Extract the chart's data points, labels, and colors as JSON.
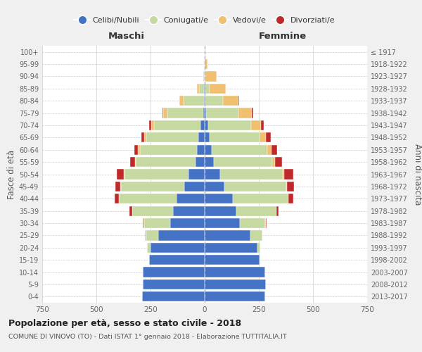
{
  "age_groups": [
    "0-4",
    "5-9",
    "10-14",
    "15-19",
    "20-24",
    "25-29",
    "30-34",
    "35-39",
    "40-44",
    "45-49",
    "50-54",
    "55-59",
    "60-64",
    "65-69",
    "70-74",
    "75-79",
    "80-84",
    "85-89",
    "90-94",
    "95-99",
    "100+"
  ],
  "birth_years": [
    "2013-2017",
    "2008-2012",
    "2003-2007",
    "1998-2002",
    "1993-1997",
    "1988-1992",
    "1983-1987",
    "1978-1982",
    "1973-1977",
    "1968-1972",
    "1963-1967",
    "1958-1962",
    "1953-1957",
    "1948-1952",
    "1943-1947",
    "1938-1942",
    "1933-1937",
    "1928-1932",
    "1923-1927",
    "1918-1922",
    "≤ 1917"
  ],
  "male": {
    "celibi": [
      290,
      285,
      285,
      255,
      250,
      215,
      160,
      145,
      130,
      95,
      75,
      42,
      35,
      28,
      20,
      8,
      3,
      2,
      0,
      0,
      0
    ],
    "coniugati": [
      0,
      0,
      0,
      3,
      15,
      55,
      120,
      190,
      265,
      290,
      295,
      275,
      265,
      240,
      215,
      165,
      95,
      25,
      4,
      1,
      0
    ],
    "vedovi": [
      0,
      0,
      0,
      0,
      0,
      0,
      1,
      1,
      2,
      3,
      4,
      5,
      8,
      10,
      12,
      18,
      18,
      8,
      2,
      0,
      0
    ],
    "divorziati": [
      0,
      0,
      0,
      0,
      1,
      2,
      5,
      12,
      20,
      25,
      32,
      22,
      18,
      14,
      8,
      4,
      1,
      1,
      0,
      0,
      0
    ]
  },
  "female": {
    "nubili": [
      280,
      282,
      280,
      252,
      242,
      210,
      162,
      145,
      130,
      90,
      72,
      42,
      32,
      22,
      15,
      8,
      3,
      2,
      1,
      0,
      0
    ],
    "coniugate": [
      0,
      0,
      0,
      3,
      15,
      55,
      118,
      185,
      255,
      285,
      288,
      270,
      258,
      232,
      200,
      148,
      82,
      20,
      3,
      1,
      0
    ],
    "vedove": [
      0,
      0,
      0,
      0,
      0,
      0,
      1,
      1,
      2,
      4,
      8,
      12,
      18,
      28,
      45,
      62,
      72,
      75,
      52,
      12,
      2
    ],
    "divorziate": [
      0,
      0,
      0,
      0,
      1,
      2,
      5,
      10,
      22,
      32,
      42,
      32,
      26,
      22,
      12,
      6,
      2,
      1,
      0,
      0,
      0
    ]
  },
  "colors": {
    "celibi_nubili": "#4472C4",
    "coniugati": "#c5d9a0",
    "vedovi": "#f0c070",
    "divorziati": "#c0282a"
  },
  "xlim": 750,
  "title_main": "Popolazione per età, sesso e stato civile - 2018",
  "title_sub": "COMUNE DI VINOVO (TO) - Dati ISTAT 1° gennaio 2018 - Elaborazione TUTTITALIA.IT",
  "ylabel_left": "Fasce di età",
  "ylabel_right": "Anni di nascita",
  "xlabel_left": "Maschi",
  "xlabel_right": "Femmine",
  "background_color": "#f0f0f0",
  "plot_bg_color": "#ffffff"
}
